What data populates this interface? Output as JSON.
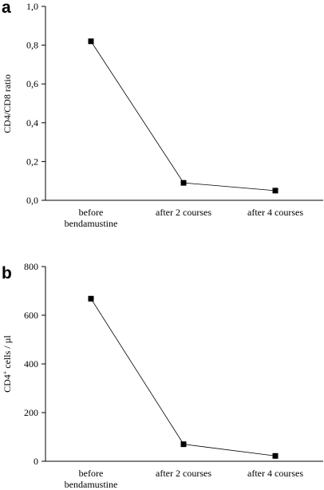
{
  "chart_data": [
    {
      "type": "line",
      "panel_label": "a",
      "title": "",
      "xlabel": "",
      "ylabel": "CD4/CD8 ratio",
      "categories": [
        [
          "before",
          "bendamustine"
        ],
        [
          "after 2 courses"
        ],
        [
          "after 4 courses"
        ]
      ],
      "values": [
        0.82,
        0.09,
        0.05
      ],
      "ylim": [
        0,
        1.0
      ],
      "yticks": [
        "0,0",
        "0,2",
        "0,4",
        "0,6",
        "0,8",
        "1,0"
      ],
      "grid": false
    },
    {
      "type": "line",
      "panel_label": "b",
      "title": "",
      "xlabel": "",
      "ylabel": "CD4⁺ cells / µl",
      "ylabel_parts": [
        "CD4",
        "+",
        " cells / µl"
      ],
      "categories": [
        [
          "before",
          "bendamustine"
        ],
        [
          "after 2 courses"
        ],
        [
          "after 4 courses"
        ]
      ],
      "values": [
        668,
        70,
        22
      ],
      "ylim": [
        0,
        800
      ],
      "yticks": [
        "0",
        "200",
        "400",
        "600",
        "800"
      ],
      "grid": false
    }
  ]
}
